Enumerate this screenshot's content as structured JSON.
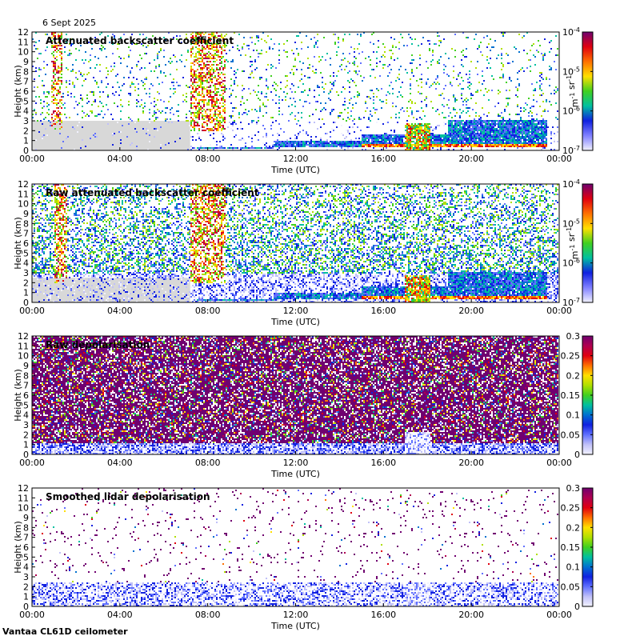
{
  "date_label": "6 Sept 2025",
  "footer_label": "Vantaa CL61D ceilometer",
  "colors": {
    "background": "#ffffff",
    "missing_data": "#d8d8d8",
    "colormap": [
      "#f2f2ff",
      "#c0c0f8",
      "#6070ff",
      "#1020e0",
      "#0070d0",
      "#00c0a0",
      "#40d020",
      "#b0e000",
      "#ffe000",
      "#ff7000",
      "#e00010",
      "#b00050",
      "#700070"
    ]
  },
  "chart_data": [
    {
      "type": "heatmap",
      "title": "Attenuated backscatter coefficient",
      "xlabel": "Time (UTC)",
      "ylabel": "Height (km)",
      "x_ticks": [
        "00:00",
        "04:00",
        "08:00",
        "12:00",
        "16:00",
        "20:00",
        "00:00"
      ],
      "y_ticks": [
        "0",
        "1",
        "2",
        "3",
        "4",
        "5",
        "6",
        "7",
        "8",
        "9",
        "10",
        "11",
        "12"
      ],
      "ylim": [
        0,
        12
      ],
      "xlim_hours": [
        0,
        24
      ],
      "colorbar": {
        "scale": "log",
        "range": [
          1e-07,
          0.0001
        ],
        "tick_labels": [
          {
            "base": "10",
            "exp": "-4"
          },
          {
            "base": "10",
            "exp": "-5"
          },
          {
            "base": "10",
            "exp": "-6"
          },
          {
            "base": "10",
            "exp": "-7"
          }
        ],
        "unit_parts": [
          {
            "base": "m",
            "exp": "-1"
          },
          {
            "base": " sr",
            "exp": "-1"
          }
        ]
      },
      "features": {
        "noise_density": 0.12,
        "gray_missing_hours": [
          [
            0,
            7.2
          ]
        ],
        "gray_missing_top_km": 3.0,
        "high_color_columns_hours": [
          [
            0.9,
            1.4
          ],
          [
            7.2,
            8.8
          ]
        ],
        "cloud_layers": [
          {
            "start_h": 7.5,
            "end_h": 11.0,
            "base_km": 0.1,
            "top_km": 0.35
          },
          {
            "start_h": 11.0,
            "end_h": 15.0,
            "base_km": 0.3,
            "top_km": 0.9
          },
          {
            "start_h": 15.0,
            "end_h": 19.0,
            "base_km": 0.4,
            "top_km": 1.6
          },
          {
            "start_h": 19.0,
            "end_h": 23.5,
            "base_km": 0.3,
            "top_km": 3.0
          }
        ],
        "precip_columns_hours": [
          [
            17.0,
            18.2
          ]
        ]
      }
    },
    {
      "type": "heatmap",
      "title": "Raw attenuated backscatter coefficient",
      "xlabel": "Time (UTC)",
      "ylabel": "Height (km)",
      "x_ticks": [
        "00:00",
        "04:00",
        "08:00",
        "12:00",
        "16:00",
        "20:00",
        "00:00"
      ],
      "y_ticks": [
        "0",
        "1",
        "2",
        "3",
        "4",
        "5",
        "6",
        "7",
        "8",
        "9",
        "10",
        "11",
        "12"
      ],
      "ylim": [
        0,
        12
      ],
      "xlim_hours": [
        0,
        24
      ],
      "colorbar": {
        "scale": "log",
        "range": [
          1e-07,
          0.0001
        ],
        "tick_labels": [
          {
            "base": "10",
            "exp": "-4"
          },
          {
            "base": "10",
            "exp": "-5"
          },
          {
            "base": "10",
            "exp": "-6"
          },
          {
            "base": "10",
            "exp": "-7"
          }
        ],
        "unit_parts": [
          {
            "base": "m",
            "exp": "-1"
          },
          {
            "base": " sr",
            "exp": "-1"
          }
        ]
      },
      "features": {
        "noise_density": 0.55,
        "gray_missing_hours": [
          [
            0,
            7.2
          ]
        ],
        "gray_missing_top_km": 2.5,
        "high_color_columns_hours": [
          [
            1.0,
            1.6
          ],
          [
            7.2,
            8.8
          ]
        ],
        "cloud_layers": [
          {
            "start_h": 7.5,
            "end_h": 11.0,
            "base_km": 0.1,
            "top_km": 0.35
          },
          {
            "start_h": 11.0,
            "end_h": 15.0,
            "base_km": 0.3,
            "top_km": 0.9
          },
          {
            "start_h": 15.0,
            "end_h": 19.0,
            "base_km": 0.4,
            "top_km": 1.6
          },
          {
            "start_h": 19.0,
            "end_h": 23.5,
            "base_km": 0.3,
            "top_km": 3.0
          }
        ],
        "precip_columns_hours": [
          [
            17.0,
            18.2
          ]
        ]
      }
    },
    {
      "type": "heatmap",
      "title": "Raw depolarisation",
      "xlabel": "Time (UTC)",
      "ylabel": "Height (km)",
      "x_ticks": [
        "00:00",
        "04:00",
        "08:00",
        "12:00",
        "16:00",
        "20:00",
        "00:00"
      ],
      "y_ticks": [
        "0",
        "1",
        "2",
        "3",
        "4",
        "5",
        "6",
        "7",
        "8",
        "9",
        "10",
        "11",
        "12"
      ],
      "ylim": [
        0,
        12
      ],
      "xlim_hours": [
        0,
        24
      ],
      "colorbar": {
        "scale": "linear",
        "range": [
          0,
          0.3
        ],
        "tick_labels": [
          "0.3",
          "0.25",
          "0.2",
          "0.15",
          "0.1",
          "0.05",
          "0"
        ]
      },
      "features": {
        "noise_density": 0.85,
        "low_layer_top_km": 1.2,
        "precip_columns_hours": [
          [
            17.0,
            18.2
          ]
        ]
      }
    },
    {
      "type": "heatmap",
      "title": "Smoothed lidar depolarisation",
      "xlabel": "Time (UTC)",
      "ylabel": "Height (km)",
      "x_ticks": [
        "00:00",
        "04:00",
        "08:00",
        "12:00",
        "16:00",
        "20:00",
        "00:00"
      ],
      "y_ticks": [
        "0",
        "1",
        "2",
        "3",
        "4",
        "5",
        "6",
        "7",
        "8",
        "9",
        "10",
        "11",
        "12"
      ],
      "ylim": [
        0,
        12
      ],
      "xlim_hours": [
        0,
        24
      ],
      "colorbar": {
        "scale": "linear",
        "range": [
          0,
          0.3
        ],
        "tick_labels": [
          "0.3",
          "0.25",
          "0.2",
          "0.15",
          "0.1",
          "0.05",
          "0"
        ]
      },
      "features": {
        "noise_density": 0.04,
        "low_layer_top_km": 2.5,
        "precip_columns_hours": [
          [
            17.0,
            18.2
          ]
        ]
      }
    }
  ]
}
